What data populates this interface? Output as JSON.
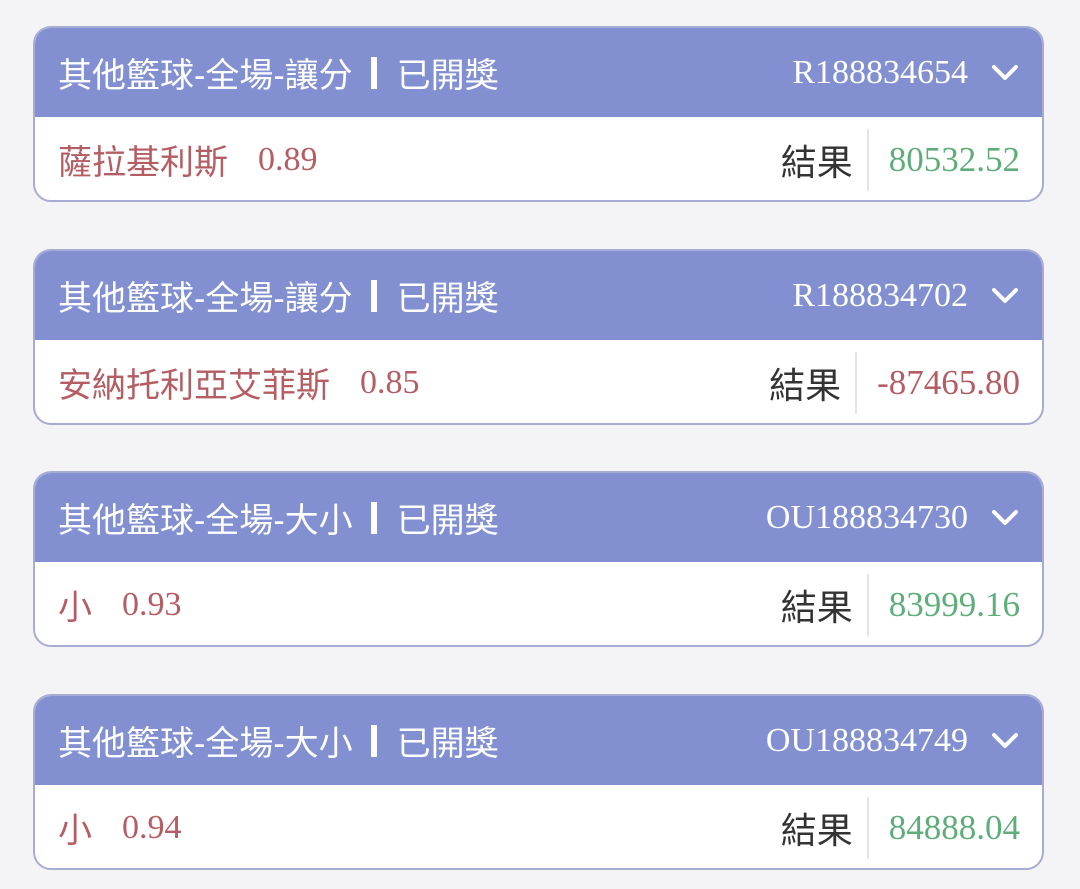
{
  "colors": {
    "header": "#8290d2",
    "pick": "#b45d63",
    "positive": "#5fae7a",
    "negative": "#b45d63"
  },
  "result_label": "結果",
  "bets": [
    {
      "title": "其他籃球-全場-讓分",
      "status": "已開獎",
      "id": "R188834654",
      "pick": "薩拉基利斯",
      "odds": "0.89",
      "result": "80532.52",
      "positive": true
    },
    {
      "title": "其他籃球-全場-讓分",
      "status": "已開獎",
      "id": "R188834702",
      "pick": "安納托利亞艾菲斯",
      "odds": "0.85",
      "result": "-87465.80",
      "positive": false
    },
    {
      "title": "其他籃球-全場-大小",
      "status": "已開獎",
      "id": "OU188834730",
      "pick": "小",
      "odds": "0.93",
      "result": "83999.16",
      "positive": true
    },
    {
      "title": "其他籃球-全場-大小",
      "status": "已開獎",
      "id": "OU188834749",
      "pick": "小",
      "odds": "0.94",
      "result": "84888.04",
      "positive": true
    }
  ]
}
